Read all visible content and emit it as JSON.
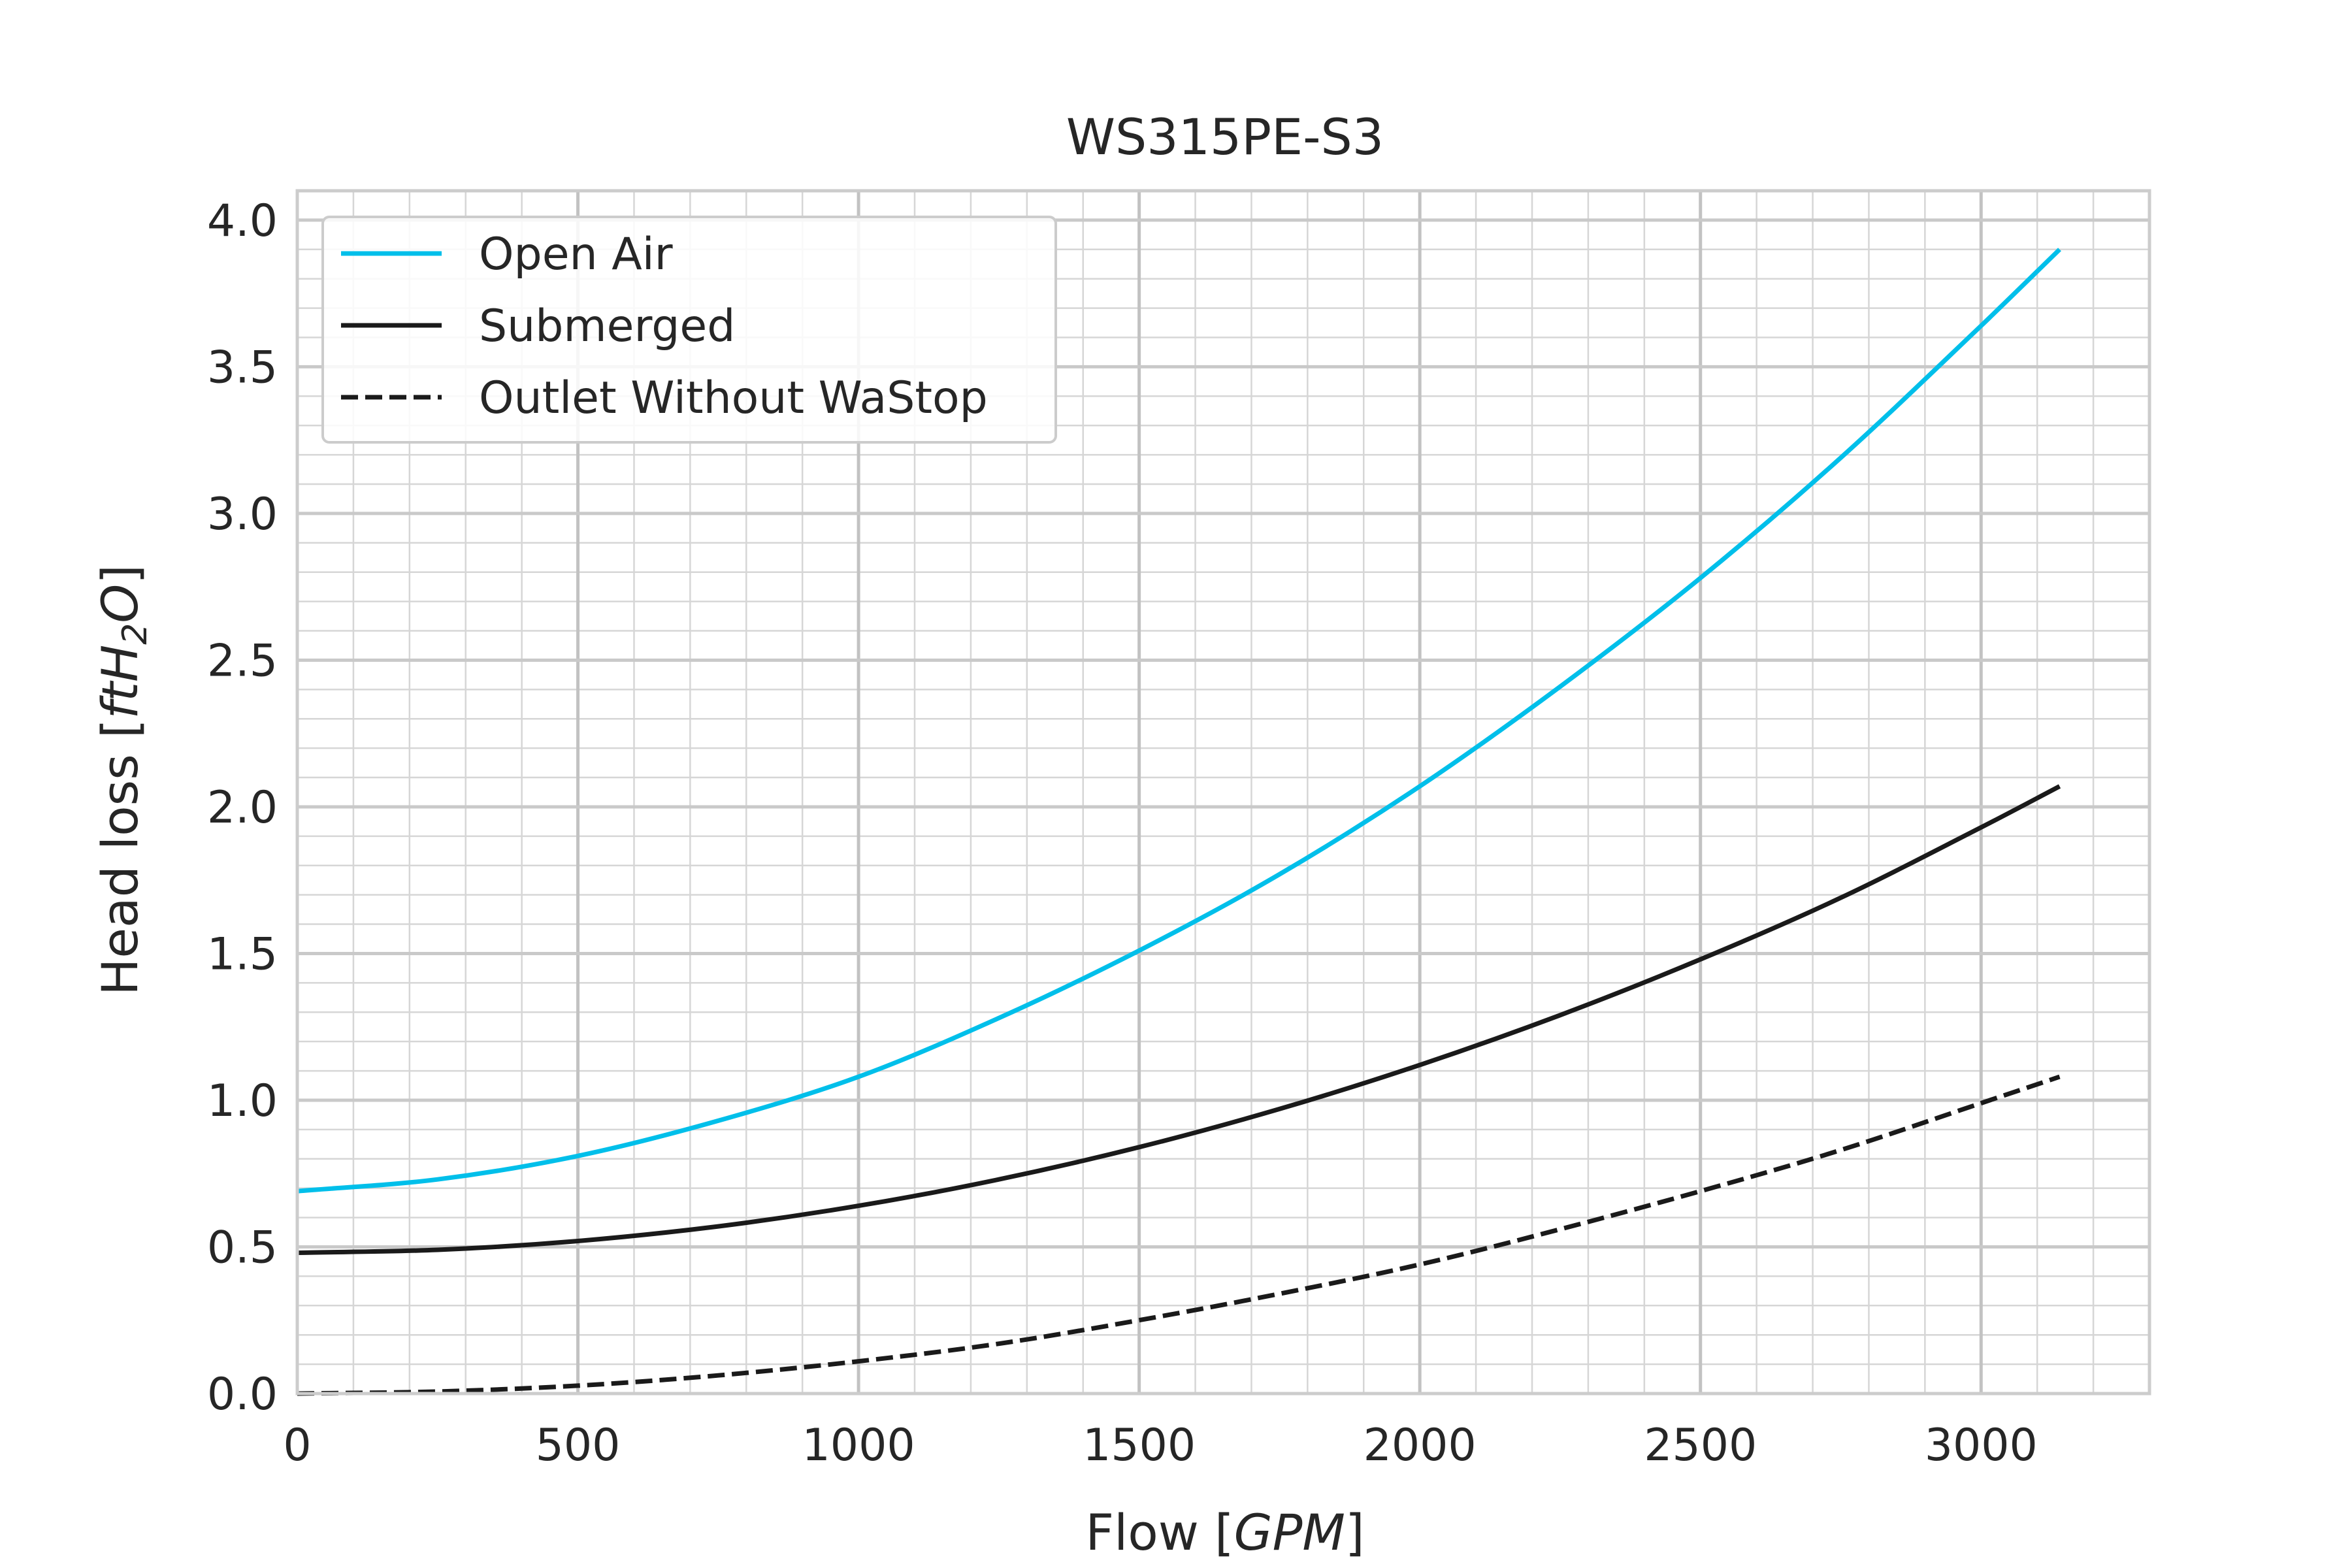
{
  "chart_data": {
    "type": "line",
    "title": "WS315PE-S3",
    "xlabel_prefix": "Flow [",
    "xlabel_unit": "GPM",
    "xlabel_suffix": "]",
    "ylabel_prefix": "Head loss [",
    "ylabel_unit_a": "ftH",
    "ylabel_unit_sub": "2",
    "ylabel_unit_b": "O",
    "ylabel_suffix": "]",
    "xlim": [
      0,
      3300
    ],
    "ylim": [
      0,
      4.1
    ],
    "x_ticks": [
      0,
      500,
      1000,
      1500,
      2000,
      2500,
      3000
    ],
    "x_tick_labels": [
      "0",
      "500",
      "1000",
      "1500",
      "2000",
      "2500",
      "3000"
    ],
    "y_ticks": [
      0,
      0.5,
      1.0,
      1.5,
      2.0,
      2.5,
      3.0,
      3.5,
      4.0
    ],
    "y_tick_labels": [
      "0.0",
      "0.5",
      "1.0",
      "1.5",
      "2.0",
      "2.5",
      "3.0",
      "3.5",
      "4.0"
    ],
    "grid": true,
    "minor_grid": true,
    "legend_position": "top-left",
    "x": [
      0,
      250,
      500,
      750,
      1000,
      1250,
      1500,
      1750,
      2000,
      2250,
      2500,
      2750,
      3000,
      3140
    ],
    "series": [
      {
        "name": "Open Air",
        "color": "#00BFEA",
        "style": "solid",
        "values": [
          0.69,
          0.73,
          0.81,
          0.93,
          1.08,
          1.28,
          1.51,
          1.77,
          2.07,
          2.41,
          2.78,
          3.19,
          3.64,
          3.9
        ]
      },
      {
        "name": "Submerged",
        "color": "#1a1a1a",
        "style": "solid",
        "values": [
          0.48,
          0.49,
          0.52,
          0.57,
          0.64,
          0.73,
          0.84,
          0.97,
          1.12,
          1.29,
          1.48,
          1.69,
          1.93,
          2.07
        ]
      },
      {
        "name": "Outlet Without WaStop",
        "color": "#1a1a1a",
        "style": "dashed",
        "values": [
          0.0,
          0.007,
          0.027,
          0.062,
          0.11,
          0.17,
          0.25,
          0.34,
          0.44,
          0.56,
          0.69,
          0.83,
          0.99,
          1.08
        ]
      }
    ]
  }
}
